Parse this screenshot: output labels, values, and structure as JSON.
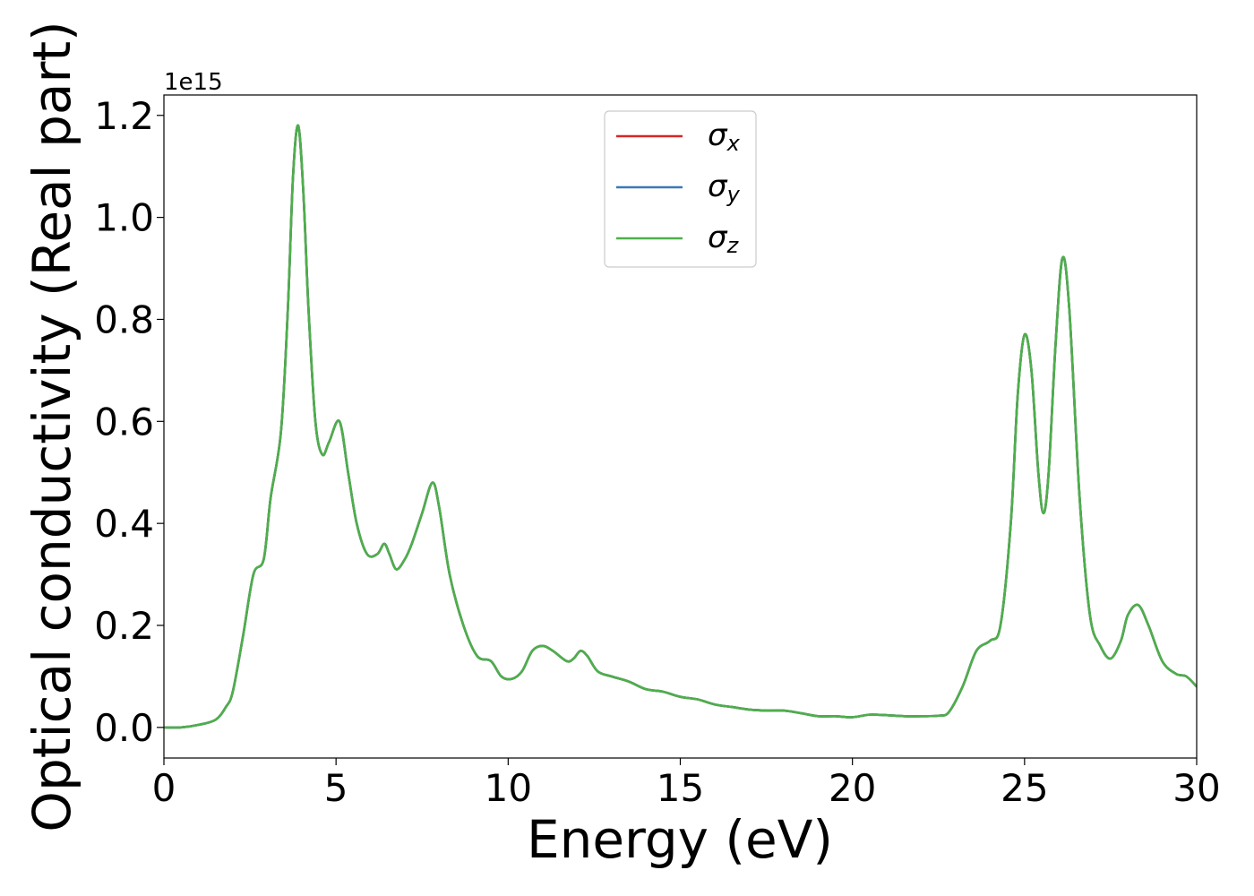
{
  "chart_data": {
    "type": "line",
    "xlabel": "Energy (eV)",
    "ylabel": "Optical conductivity (Real part)",
    "offset_label": "1e15",
    "y_scale_factor": 1000000000000000.0,
    "xlim": [
      0,
      30
    ],
    "ylim": [
      -0.06,
      1.24
    ],
    "xticks": [
      0,
      5,
      10,
      15,
      20,
      25,
      30
    ],
    "yticks": [
      0.0,
      0.2,
      0.4,
      0.6,
      0.8,
      1.0,
      1.2
    ],
    "grid": false,
    "legend_position": "top-center",
    "x": [
      0,
      0.5,
      1.0,
      1.5,
      1.8,
      2.0,
      2.3,
      2.6,
      2.9,
      3.1,
      3.4,
      3.6,
      3.75,
      3.9,
      4.05,
      4.2,
      4.4,
      4.6,
      4.8,
      5.1,
      5.35,
      5.6,
      5.9,
      6.2,
      6.4,
      6.55,
      6.75,
      7.0,
      7.2,
      7.5,
      7.8,
      8.0,
      8.3,
      8.7,
      9.1,
      9.5,
      9.8,
      10.1,
      10.4,
      10.7,
      11.0,
      11.3,
      11.7,
      11.9,
      12.1,
      12.3,
      12.6,
      13.0,
      13.5,
      14.0,
      14.5,
      15.0,
      15.5,
      16.0,
      16.5,
      17.0,
      17.5,
      18.0,
      18.5,
      19.0,
      19.5,
      20.0,
      20.5,
      21.0,
      21.5,
      22.0,
      22.5,
      22.8,
      23.2,
      23.6,
      24.0,
      24.3,
      24.6,
      24.8,
      25.0,
      25.2,
      25.4,
      25.55,
      25.7,
      25.9,
      26.1,
      26.3,
      26.6,
      26.9,
      27.2,
      27.5,
      27.8,
      28.0,
      28.3,
      28.6,
      29.0,
      29.4,
      29.7,
      30.0
    ],
    "series": [
      {
        "name": "σx",
        "color": "#d62728",
        "values": [
          0.0,
          0.0,
          0.005,
          0.015,
          0.04,
          0.07,
          0.18,
          0.3,
          0.33,
          0.45,
          0.58,
          0.82,
          1.08,
          1.18,
          1.05,
          0.82,
          0.6,
          0.535,
          0.56,
          0.6,
          0.5,
          0.4,
          0.34,
          0.34,
          0.36,
          0.34,
          0.31,
          0.33,
          0.36,
          0.42,
          0.48,
          0.43,
          0.3,
          0.2,
          0.14,
          0.13,
          0.1,
          0.095,
          0.11,
          0.15,
          0.16,
          0.15,
          0.13,
          0.135,
          0.15,
          0.14,
          0.11,
          0.1,
          0.09,
          0.075,
          0.07,
          0.06,
          0.055,
          0.045,
          0.04,
          0.035,
          0.033,
          0.033,
          0.028,
          0.022,
          0.022,
          0.02,
          0.025,
          0.024,
          0.022,
          0.022,
          0.023,
          0.03,
          0.08,
          0.15,
          0.17,
          0.2,
          0.4,
          0.65,
          0.77,
          0.7,
          0.5,
          0.42,
          0.5,
          0.75,
          0.92,
          0.82,
          0.45,
          0.22,
          0.16,
          0.135,
          0.17,
          0.22,
          0.24,
          0.2,
          0.13,
          0.105,
          0.1,
          0.08
        ]
      },
      {
        "name": "σy",
        "color": "#3a78b5",
        "values": [
          0.0,
          0.0,
          0.005,
          0.015,
          0.04,
          0.07,
          0.18,
          0.3,
          0.33,
          0.45,
          0.58,
          0.82,
          1.08,
          1.18,
          1.05,
          0.82,
          0.6,
          0.535,
          0.56,
          0.6,
          0.5,
          0.4,
          0.34,
          0.34,
          0.36,
          0.34,
          0.31,
          0.33,
          0.36,
          0.42,
          0.48,
          0.43,
          0.3,
          0.2,
          0.14,
          0.13,
          0.1,
          0.095,
          0.11,
          0.15,
          0.16,
          0.15,
          0.13,
          0.135,
          0.15,
          0.14,
          0.11,
          0.1,
          0.09,
          0.075,
          0.07,
          0.06,
          0.055,
          0.045,
          0.04,
          0.035,
          0.033,
          0.033,
          0.028,
          0.022,
          0.022,
          0.02,
          0.025,
          0.024,
          0.022,
          0.022,
          0.023,
          0.03,
          0.08,
          0.15,
          0.17,
          0.2,
          0.4,
          0.65,
          0.77,
          0.7,
          0.5,
          0.42,
          0.5,
          0.75,
          0.92,
          0.82,
          0.45,
          0.22,
          0.16,
          0.135,
          0.17,
          0.22,
          0.24,
          0.2,
          0.13,
          0.105,
          0.1,
          0.08
        ]
      },
      {
        "name": "σz",
        "color": "#4daf4a",
        "values": [
          0.0,
          0.0,
          0.005,
          0.015,
          0.04,
          0.07,
          0.18,
          0.3,
          0.33,
          0.45,
          0.58,
          0.82,
          1.08,
          1.18,
          1.05,
          0.82,
          0.6,
          0.535,
          0.56,
          0.6,
          0.5,
          0.4,
          0.34,
          0.34,
          0.36,
          0.34,
          0.31,
          0.33,
          0.36,
          0.42,
          0.48,
          0.43,
          0.3,
          0.2,
          0.14,
          0.13,
          0.1,
          0.095,
          0.11,
          0.15,
          0.16,
          0.15,
          0.13,
          0.135,
          0.15,
          0.14,
          0.11,
          0.1,
          0.09,
          0.075,
          0.07,
          0.06,
          0.055,
          0.045,
          0.04,
          0.035,
          0.033,
          0.033,
          0.028,
          0.022,
          0.022,
          0.02,
          0.025,
          0.024,
          0.022,
          0.022,
          0.023,
          0.03,
          0.08,
          0.15,
          0.17,
          0.2,
          0.4,
          0.65,
          0.77,
          0.7,
          0.5,
          0.42,
          0.5,
          0.75,
          0.92,
          0.82,
          0.45,
          0.22,
          0.16,
          0.135,
          0.17,
          0.22,
          0.24,
          0.2,
          0.13,
          0.105,
          0.1,
          0.08
        ]
      }
    ]
  }
}
